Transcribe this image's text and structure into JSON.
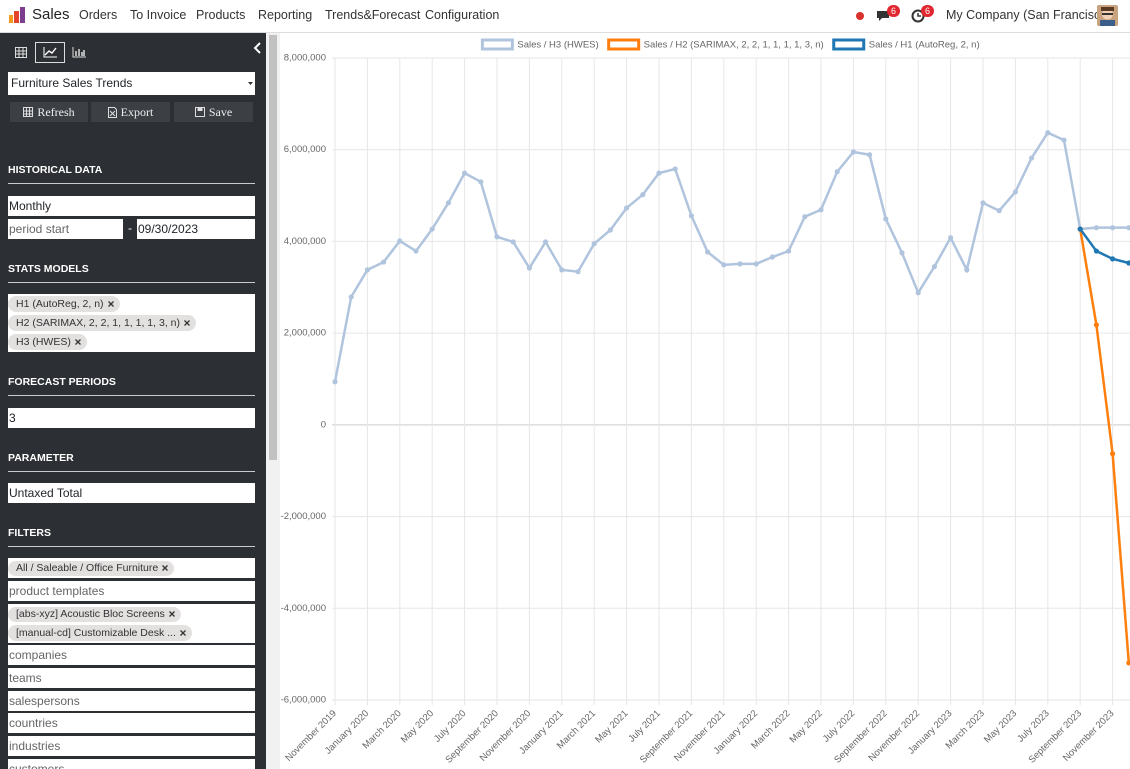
{
  "navbar": {
    "app_name": "Sales",
    "menu": [
      "Orders",
      "To Invoice",
      "Products",
      "Reporting",
      "Trends&Forecast",
      "Configuration"
    ],
    "chat_badge": 6,
    "activity_badge": 6,
    "company": "My Company (San Francisco)"
  },
  "sidebar": {
    "report": "Furniture Sales Trends",
    "buttons": [
      "Refresh",
      "Export",
      "Save"
    ],
    "historical_data": {
      "heading": "HISTORICAL DATA",
      "interval": "Monthly",
      "period_start_placeholder": "period start",
      "separator": "-",
      "period_end": "09/30/2023"
    },
    "stats_models": {
      "heading": "STATS MODELS",
      "tags": [
        "H1 (AutoReg, 2, n)",
        "H2 (SARIMAX, 2, 2, 1, 1, 1, 1, 3, n)",
        "H3 (HWES)"
      ]
    },
    "forecast_periods": {
      "heading": "FORECAST PERIODS",
      "value": 3
    },
    "parameter": {
      "heading": "PARAMETER",
      "value": "Untaxed Total"
    },
    "filters": {
      "heading": "FILTERS",
      "category_tags": [
        "All / Saleable / Office Furniture"
      ],
      "product_templates_placeholder": "product templates",
      "product_tags": [
        "[abs-xyz] Acoustic Bloc Screens",
        "[manual-cd] Customizable Desk ..."
      ],
      "fields": [
        "companies",
        "teams",
        "salespersons",
        "countries",
        "industries",
        "customers"
      ]
    }
  },
  "chart_data": {
    "type": "line",
    "legend": "top",
    "grid": true,
    "categories": [
      "November 2019",
      null,
      "January 2020",
      null,
      "March 2020",
      null,
      "May 2020",
      null,
      "July 2020",
      null,
      "September 2020",
      null,
      "November 2020",
      null,
      "January 2021",
      null,
      "March 2021",
      null,
      "May 2021",
      null,
      "July 2021",
      null,
      "September 2021",
      null,
      "November 2021",
      null,
      "January 2022",
      null,
      "March 2022",
      null,
      "May 2022",
      null,
      "July 2022",
      null,
      "September 2022",
      null,
      "November 2022",
      null,
      "January 2023",
      null,
      "March 2023",
      null,
      "May 2023",
      null,
      "July 2023",
      null,
      "September 2023",
      null,
      "November 2023",
      null
    ],
    "ylim": [
      -6000000,
      8000000
    ],
    "yticks": [
      {
        "value": -6000000,
        "label": "-6,000,000"
      },
      {
        "value": -4000000,
        "label": "-4,000,000"
      },
      {
        "value": -2000000,
        "label": "-2,000,000"
      },
      0,
      {
        "value": 2000000,
        "label": "2,000,000"
      },
      {
        "value": 4000000,
        "label": "4,000,000"
      },
      {
        "value": 6000000,
        "label": "6,000,000"
      },
      {
        "value": 8000000,
        "label": "8,000,000"
      }
    ],
    "series": [
      {
        "name": "Sales / H3 (HWES)",
        "color": "#b0c4de",
        "values": [
          940000,
          2790000,
          3380000,
          3550000,
          4010000,
          3790000,
          4270000,
          4840000,
          5490000,
          5300000,
          4100000,
          3990000,
          3420000,
          3990000,
          3380000,
          3340000,
          3950000,
          4250000,
          4730000,
          5020000,
          5490000,
          5580000,
          4560000,
          3770000,
          3490000,
          3510000,
          3510000,
          3660000,
          3790000,
          4540000,
          4690000,
          5520000,
          5950000,
          5890000,
          4490000,
          3750000,
          2880000,
          3450000,
          4080000,
          3380000,
          4840000,
          4670000,
          5080000,
          5820000,
          6370000,
          6210000,
          4270000,
          4300000,
          4300000,
          4300000
        ]
      },
      {
        "name": "Sales / H2 (SARIMAX, 2, 2, 1, 1, 1, 1, 3, n)",
        "color": "#ff7f0e",
        "values": [
          null,
          null,
          null,
          null,
          null,
          null,
          null,
          null,
          null,
          null,
          null,
          null,
          null,
          null,
          null,
          null,
          null,
          null,
          null,
          null,
          null,
          null,
          null,
          null,
          null,
          null,
          null,
          null,
          null,
          null,
          null,
          null,
          null,
          null,
          null,
          null,
          null,
          null,
          null,
          null,
          null,
          null,
          null,
          null,
          null,
          null,
          4270000,
          2180000,
          -630000,
          -5190000
        ]
      },
      {
        "name": "Sales / H1 (AutoReg, 2, n)",
        "color": "#1f77b4",
        "values": [
          null,
          null,
          null,
          null,
          null,
          null,
          null,
          null,
          null,
          null,
          null,
          null,
          null,
          null,
          null,
          null,
          null,
          null,
          null,
          null,
          null,
          null,
          null,
          null,
          null,
          null,
          null,
          null,
          null,
          null,
          null,
          null,
          null,
          null,
          null,
          null,
          null,
          null,
          null,
          null,
          null,
          null,
          null,
          null,
          null,
          null,
          4270000,
          3790000,
          3620000,
          3530000
        ]
      }
    ]
  }
}
